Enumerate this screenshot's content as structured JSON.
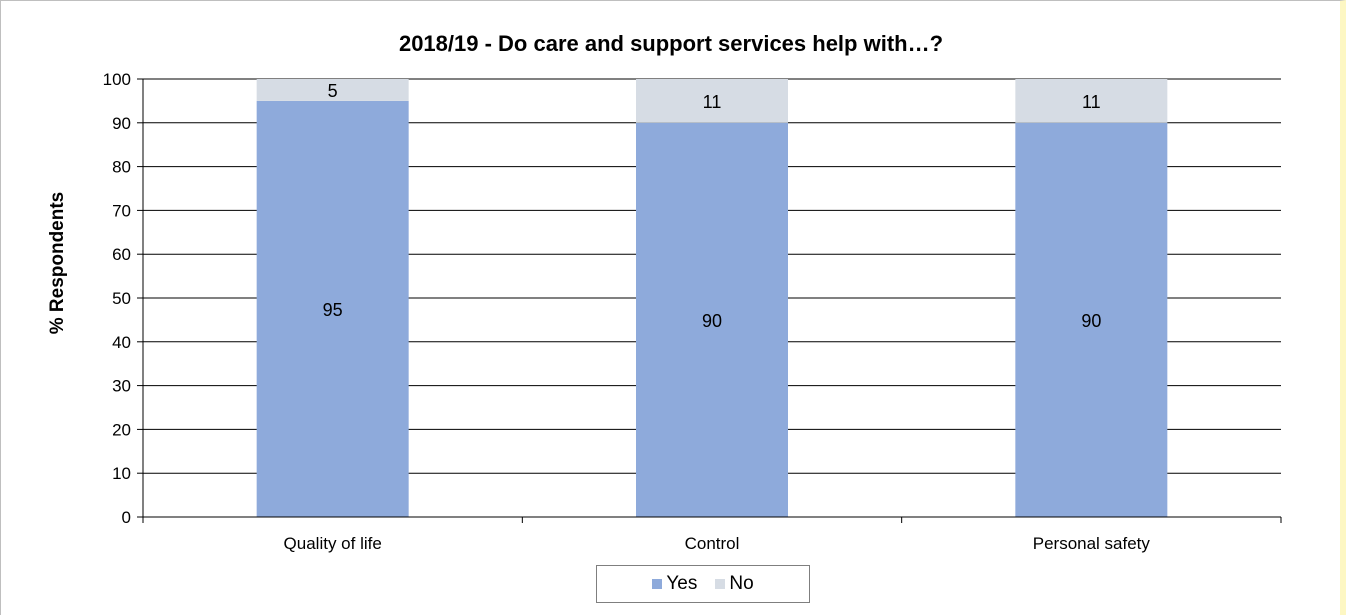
{
  "chart_data": {
    "type": "bar",
    "stacked": true,
    "title": "2018/19 - Do care and support services help with…?",
    "xlabel": "",
    "ylabel": "% Respondents",
    "categories": [
      "Quality of life",
      "Control",
      "Personal safety"
    ],
    "series": [
      {
        "name": "Yes",
        "values": [
          95,
          90,
          90
        ],
        "color": "#8eaadb"
      },
      {
        "name": "No",
        "values": [
          5,
          11,
          11
        ],
        "color": "#d6dce4"
      }
    ],
    "data_labels": [
      [
        "95",
        "90",
        "90"
      ],
      [
        "5",
        "11",
        "11"
      ]
    ],
    "ylim": [
      0,
      100
    ],
    "yticks": [
      "0",
      "10",
      "20",
      "30",
      "40",
      "50",
      "60",
      "70",
      "80",
      "90",
      "100"
    ],
    "grid": true,
    "legend_position": "bottom"
  }
}
